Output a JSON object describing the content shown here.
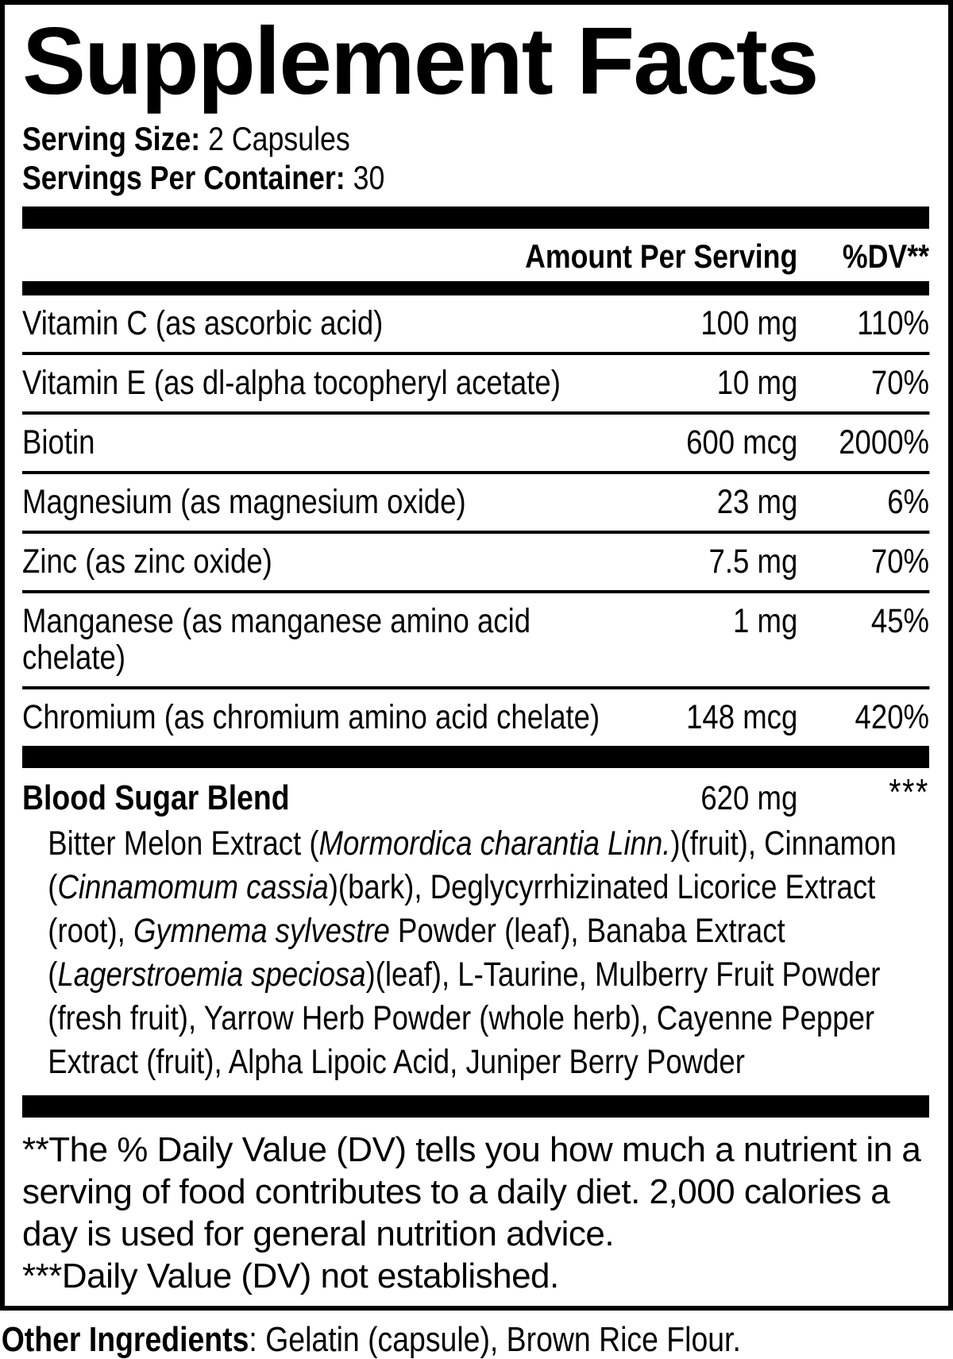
{
  "title": "Supplement Facts",
  "serving": {
    "size_label": "Serving Size:",
    "size_value": " 2 Capsules",
    "container_label": "Servings Per Container:",
    "container_value": " 30"
  },
  "table": {
    "amount_header": "Amount Per Serving",
    "dv_header": "%DV**",
    "rows": [
      {
        "name": "Vitamin C (as ascorbic acid)",
        "amount": "100 mg",
        "dv": "110%"
      },
      {
        "name": "Vitamin E (as dl-alpha tocopheryl acetate)",
        "amount": "10 mg",
        "dv": "70%"
      },
      {
        "name": "Biotin",
        "amount": "600 mcg",
        "dv": "2000%"
      },
      {
        "name": "Magnesium (as magnesium oxide)",
        "amount": "23 mg",
        "dv": "6%"
      },
      {
        "name": "Zinc (as zinc oxide)",
        "amount": "7.5 mg",
        "dv": "70%"
      },
      {
        "name": "Manganese (as manganese amino acid chelate)",
        "amount": "1 mg",
        "dv": "45%"
      },
      {
        "name": "Chromium (as chromium amino acid chelate)",
        "amount": "148 mcg",
        "dv": "420%"
      }
    ]
  },
  "blend": {
    "name": "Blood Sugar Blend",
    "amount": "620 mg",
    "dv": "***",
    "ingredients_segments": [
      {
        "text": "Bitter Melon Extract (",
        "italic": false
      },
      {
        "text": "Mormordica charantia Linn.",
        "italic": true
      },
      {
        "text": ")(fruit), Cinnamon (",
        "italic": false
      },
      {
        "text": "Cinnamomum cassia",
        "italic": true
      },
      {
        "text": ")(bark), Deglycyrrhizinated Licorice Extract (root), ",
        "italic": false
      },
      {
        "text": "Gymnema sylvestre",
        "italic": true
      },
      {
        "text": " Powder (leaf), Banaba Extract (",
        "italic": false
      },
      {
        "text": "Lagerstroemia speciosa",
        "italic": true
      },
      {
        "text": ")(leaf), L-Taurine, Mulberry Fruit Powder (fresh fruit), Yarrow Herb Powder (whole herb), Cayenne Pepper Extract (fruit), Alpha Lipoic Acid, Juniper Berry Powder",
        "italic": false
      }
    ]
  },
  "footnotes": {
    "dv_note": "**The % Daily Value (DV) tells you how much a nutrient in a serving of food contributes to a daily diet. 2,000 calories a day is used for general nutrition advice.",
    "not_established": "***Daily Value (DV) not established."
  },
  "other_ingredients": {
    "label": "Other Ingredients",
    "value": ": Gelatin (capsule), Brown Rice Flour."
  },
  "colors": {
    "ink": "#000000",
    "background": "#ffffff"
  }
}
